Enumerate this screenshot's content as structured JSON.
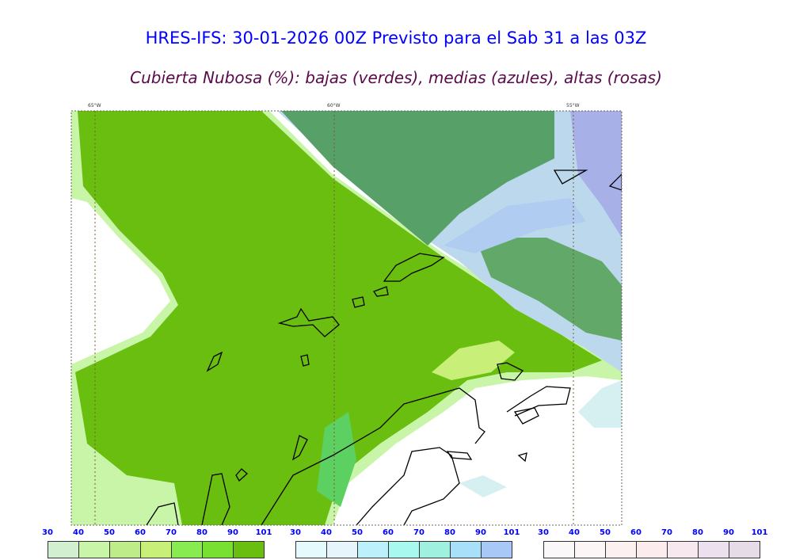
{
  "title": "HRES-IFS: 30-01-2026 00Z Previsto para el Sab 31 a las 03Z",
  "subtitle": "Cubierta Nubosa (%): bajas (verdes), medias (azules), altas (rosas)",
  "longitude_labels": [
    "65°W",
    "60°W",
    "55°W"
  ],
  "legends": [
    {
      "name": "bajas",
      "ticks": [
        "30",
        "40",
        "50",
        "60",
        "70",
        "80",
        "90",
        "101"
      ],
      "colors": [
        "#d2f0d0",
        "#c8f5a8",
        "#bdec88",
        "#c8f078",
        "#88ec50",
        "#78e030",
        "#6abe10"
      ]
    },
    {
      "name": "medias",
      "ticks": [
        "30",
        "40",
        "50",
        "60",
        "70",
        "80",
        "90",
        "101"
      ],
      "colors": [
        "#e4fafc",
        "#e6f4fb",
        "#bcf0fa",
        "#a8f8f0",
        "#a0f0e0",
        "#a8e0fa",
        "#a8c8f8"
      ]
    },
    {
      "name": "altas",
      "ticks": [
        "30",
        "40",
        "50",
        "60",
        "70",
        "80",
        "90",
        "101"
      ],
      "colors": [
        "#faf8f8",
        "#fcf6f6",
        "#fcf0f0",
        "#fcecee",
        "#f6e8ee",
        "#ece0ee",
        "#e6dce8"
      ]
    }
  ],
  "colors": {
    "title": "#0000ff",
    "subtitle": "#5a0a4a",
    "low_cloud": "#6abe10",
    "mid_cloud": "#a8c8f8",
    "high_cloud": "#e6dce8"
  }
}
